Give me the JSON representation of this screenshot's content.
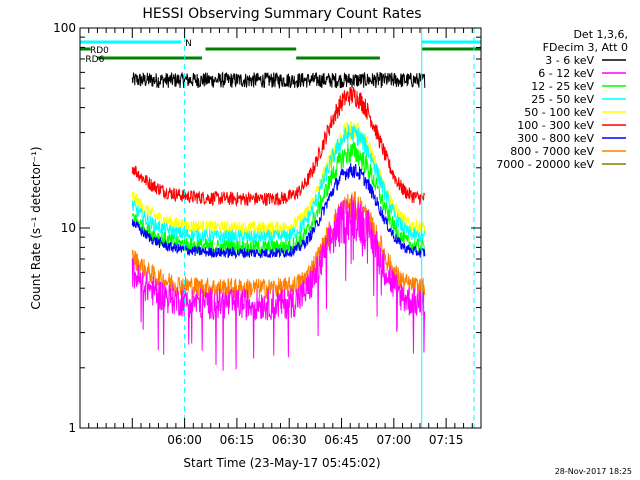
{
  "chart_data": {
    "type": "line",
    "title": "HESSI Observing Summary Count Rates",
    "xlabel": "Start Time (23-May-17 05:45:02)",
    "ylabel": "Count Rate (s⁻¹ detector⁻¹)",
    "yscale": "log",
    "ylim": [
      1,
      100
    ],
    "xlim_minutes": [
      -15,
      100
    ],
    "y_ticks": [
      "1",
      "10",
      "100"
    ],
    "x_ticks": [
      {
        "label": "06:00",
        "min": 15
      },
      {
        "label": "06:15",
        "min": 30
      },
      {
        "label": "06:30",
        "min": 45
      },
      {
        "label": "06:45",
        "min": 60
      },
      {
        "label": "07:00",
        "min": 75
      },
      {
        "label": "07:15",
        "min": 90
      }
    ],
    "legend": {
      "placement": "right",
      "header": [
        "Det 1,3,6,",
        "FDecim 3, Att 0"
      ],
      "entries": [
        {
          "label": "3 - 6 keV",
          "color": "#000000"
        },
        {
          "label": "6 - 12 keV",
          "color": "#ff00ff"
        },
        {
          "label": "12 - 25 keV",
          "color": "#00ff00"
        },
        {
          "label": "25 - 50 keV",
          "color": "#00ffff"
        },
        {
          "label": "50 - 100 keV",
          "color": "#ffff00"
        },
        {
          "label": "100 - 300 keV",
          "color": "#ff0000"
        },
        {
          "label": "300 - 800 keV",
          "color": "#0000ff"
        },
        {
          "label": "800 - 7000 keV",
          "color": "#ff8000"
        },
        {
          "label": "7000 - 20000 keV",
          "color": "#808000"
        }
      ]
    },
    "series_profiles": [
      {
        "name": "3 - 6 keV",
        "color": "#000000",
        "base": 55,
        "peak_factor": 1.0,
        "noise": 0.04,
        "start_min": 0,
        "end_min": 84
      },
      {
        "name": "100 - 300 keV",
        "color": "#ff0000",
        "base": 14,
        "peak_factor": 3.3,
        "noise": 0.08,
        "start_min": 0,
        "end_min": 84
      },
      {
        "name": "50 - 100 keV",
        "color": "#ffff00",
        "base": 10,
        "peak_factor": 3.1,
        "noise": 0.08,
        "start_min": 0,
        "end_min": 84
      },
      {
        "name": "25 - 50 keV",
        "color": "#00ffff",
        "base": 9,
        "peak_factor": 3.3,
        "noise": 0.08,
        "start_min": 0,
        "end_min": 84
      },
      {
        "name": "12 - 25 keV",
        "color": "#00ff00",
        "base": 8,
        "peak_factor": 3.0,
        "noise": 0.09,
        "start_min": 0,
        "end_min": 84
      },
      {
        "name": "300 - 800 keV",
        "color": "#0000ff",
        "base": 7.5,
        "peak_factor": 2.6,
        "noise": 0.06,
        "start_min": 0,
        "end_min": 84
      },
      {
        "name": "800 - 7000 keV",
        "color": "#ff8000",
        "base": 5.0,
        "peak_factor": 2.6,
        "noise": 0.12,
        "start_min": 0,
        "end_min": 84
      },
      {
        "name": "6 - 12 keV",
        "color": "#ff00ff",
        "base": 4.2,
        "peak_factor": 2.8,
        "noise": 0.18,
        "start_min": 0,
        "end_min": 84
      }
    ],
    "attenuator_bars": [
      {
        "label": "N",
        "color": "#00ffff",
        "start_min": -15,
        "end_min": 14,
        "level": 1
      },
      {
        "label": "",
        "color": "#00ffff",
        "start_min": 83,
        "end_min": 100,
        "level": 1
      },
      {
        "label": "RD0",
        "color": "#008000",
        "start_min": -15,
        "end_min": -12,
        "level": 2
      },
      {
        "label": "",
        "color": "#008000",
        "start_min": 21,
        "end_min": 47,
        "level": 2
      },
      {
        "label": "",
        "color": "#008000",
        "start_min": 83,
        "end_min": 100,
        "level": 2
      },
      {
        "label": "RD6",
        "color": "#008000",
        "start_min": -10,
        "end_min": 20,
        "level": 3
      },
      {
        "label": "",
        "color": "#008000",
        "start_min": 47,
        "end_min": 71,
        "level": 3
      }
    ],
    "boundaries": [
      {
        "min": -15,
        "color": "#00ffff",
        "style": "solid"
      },
      {
        "min": 15,
        "color": "#00ffff",
        "style": "dashed"
      },
      {
        "min": 83,
        "color": "#00ffff",
        "style": "solid"
      },
      {
        "min": 98,
        "color": "#00ffff",
        "style": "dashed"
      }
    ],
    "footer_date": "28-Nov-2017 18:25"
  }
}
